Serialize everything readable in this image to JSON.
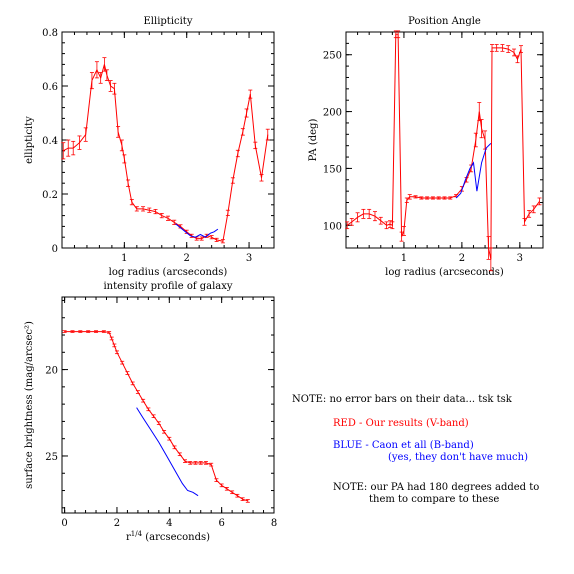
{
  "colors": {
    "red": "#ff0000",
    "blue": "#0000ff",
    "axis": "#000000"
  },
  "chart_data": [
    {
      "type": "line",
      "title": "Ellipticity",
      "xlabel": "log radius (arcseconds)",
      "ylabel": "ellipticity",
      "xlim": [
        0,
        3.4
      ],
      "ylim": [
        0,
        0.8
      ],
      "xticks": [
        1,
        2,
        3
      ],
      "yticks": [
        0,
        0.2,
        0.4,
        0.6,
        0.8
      ],
      "xtick_labels": [
        "1",
        "2",
        "3"
      ],
      "ytick_labels": [
        "0",
        "0.2",
        "0.4",
        "0.6",
        "0.8"
      ],
      "series": [
        {
          "color": "#ff0000",
          "errorbars": true,
          "x": [
            0.02,
            0.1,
            0.18,
            0.28,
            0.38,
            0.48,
            0.56,
            0.62,
            0.68,
            0.72,
            0.78,
            0.84,
            0.9,
            0.96,
            1.0,
            1.06,
            1.12,
            1.2,
            1.3,
            1.4,
            1.5,
            1.6,
            1.7,
            1.8,
            1.9,
            2.0,
            2.08,
            2.16,
            2.24,
            2.32,
            2.4,
            2.48,
            2.58,
            2.66,
            2.74,
            2.82,
            2.9,
            2.96,
            3.02,
            3.1,
            3.2,
            3.3
          ],
          "y": [
            0.36,
            0.37,
            0.37,
            0.39,
            0.42,
            0.62,
            0.66,
            0.63,
            0.68,
            0.64,
            0.6,
            0.59,
            0.43,
            0.38,
            0.33,
            0.24,
            0.17,
            0.145,
            0.145,
            0.14,
            0.135,
            0.12,
            0.11,
            0.095,
            0.08,
            0.06,
            0.045,
            0.035,
            0.035,
            0.045,
            0.04,
            0.03,
            0.025,
            0.13,
            0.25,
            0.35,
            0.43,
            0.5,
            0.57,
            0.38,
            0.26,
            0.42
          ],
          "err": [
            0.03,
            0.03,
            0.025,
            0.025,
            0.025,
            0.03,
            0.03,
            0.02,
            0.025,
            0.02,
            0.02,
            0.02,
            0.02,
            0.02,
            0.015,
            0.012,
            0.01,
            0.008,
            0.008,
            0.008,
            0.008,
            0.008,
            0.008,
            0.008,
            0.006,
            0.006,
            0.006,
            0.006,
            0.006,
            0.006,
            0.006,
            0.006,
            0.006,
            0.01,
            0.01,
            0.012,
            0.012,
            0.015,
            0.015,
            0.012,
            0.012,
            0.02
          ]
        },
        {
          "color": "#0000ff",
          "errorbars": false,
          "x": [
            1.82,
            1.9,
            1.98,
            2.06,
            2.14,
            2.22,
            2.3,
            2.38,
            2.44,
            2.5
          ],
          "y": [
            0.09,
            0.075,
            0.06,
            0.045,
            0.04,
            0.05,
            0.04,
            0.055,
            0.06,
            0.07
          ]
        }
      ]
    },
    {
      "type": "line",
      "title": "Position Angle",
      "xlabel": "log radius (arcseconds)",
      "ylabel": "PA (deg)",
      "xlim": [
        0,
        3.4
      ],
      "ylim": [
        80,
        270
      ],
      "xticks": [
        1,
        2,
        3
      ],
      "yticks": [
        100,
        150,
        200,
        250
      ],
      "xtick_labels": [
        "1",
        "2",
        "3"
      ],
      "ytick_labels": [
        "100",
        "150",
        "200",
        "250"
      ],
      "series": [
        {
          "color": "#ff0000",
          "errorbars": true,
          "x": [
            0.02,
            0.1,
            0.2,
            0.3,
            0.4,
            0.5,
            0.6,
            0.7,
            0.76,
            0.8,
            0.86,
            0.9,
            0.96,
            1.0,
            1.05,
            1.1,
            1.2,
            1.3,
            1.4,
            1.5,
            1.6,
            1.7,
            1.8,
            1.9,
            2.0,
            2.08,
            2.16,
            2.24,
            2.3,
            2.34,
            2.4,
            2.46,
            2.5,
            2.52,
            2.6,
            2.7,
            2.8,
            2.9,
            2.96,
            3.02,
            3.08,
            3.16,
            3.24,
            3.34
          ],
          "y": [
            100,
            103,
            107,
            110,
            110,
            108,
            104,
            100,
            101,
            100,
            268,
            268,
            90,
            95,
            122,
            125,
            125,
            124,
            124,
            124,
            124,
            124,
            124,
            126,
            132,
            140,
            150,
            175,
            200,
            185,
            175,
            80,
            70,
            256,
            256,
            256,
            255,
            252,
            246,
            255,
            103,
            110,
            114,
            121
          ],
          "err": [
            3,
            3,
            4,
            4,
            4,
            4,
            3,
            3,
            3,
            3,
            3,
            3,
            4,
            4,
            2,
            2,
            1,
            1,
            1,
            1,
            1,
            1,
            1,
            1,
            2,
            2,
            3,
            6,
            8,
            8,
            8,
            10,
            10,
            3,
            3,
            3,
            3,
            3,
            3,
            3,
            3,
            3,
            3,
            3
          ]
        },
        {
          "color": "#0000ff",
          "errorbars": false,
          "x": [
            1.9,
            1.98,
            2.06,
            2.14,
            2.2,
            2.26,
            2.34,
            2.42,
            2.5
          ],
          "y": [
            124,
            128,
            140,
            150,
            155,
            130,
            155,
            168,
            172
          ]
        }
      ]
    },
    {
      "type": "line",
      "title": "intensity profile of galaxy",
      "xlabel": "r^1/4 (arcseconds)",
      "ylabel": "surface brightness (mag/arcsec²)",
      "xlim": [
        -0.1,
        8
      ],
      "ylim": [
        28.3,
        15.8
      ],
      "xticks": [
        0,
        2,
        4,
        6,
        8
      ],
      "yticks": [
        20,
        25
      ],
      "xtick_labels": [
        "0",
        "2",
        "4",
        "6",
        "8"
      ],
      "ytick_labels": [
        "20",
        "25"
      ],
      "series": [
        {
          "color": "#ff0000",
          "errorbars": true,
          "x": [
            0.0,
            0.3,
            0.6,
            0.9,
            1.2,
            1.5,
            1.7,
            1.8,
            1.9,
            2.0,
            2.2,
            2.4,
            2.6,
            2.8,
            3.0,
            3.2,
            3.4,
            3.6,
            3.8,
            4.0,
            4.2,
            4.4,
            4.6,
            4.8,
            5.0,
            5.2,
            5.4,
            5.6,
            5.8,
            6.0,
            6.2,
            6.4,
            6.6,
            6.8,
            7.0
          ],
          "y": [
            17.8,
            17.8,
            17.8,
            17.8,
            17.8,
            17.8,
            17.85,
            18.2,
            18.6,
            19.0,
            19.6,
            20.2,
            20.8,
            21.3,
            21.8,
            22.3,
            22.7,
            23.1,
            23.6,
            24.0,
            24.5,
            24.9,
            25.3,
            25.4,
            25.4,
            25.4,
            25.4,
            25.5,
            26.4,
            26.7,
            26.9,
            27.1,
            27.3,
            27.5,
            27.6
          ],
          "err": [
            0.05,
            0.05,
            0.05,
            0.05,
            0.05,
            0.05,
            0.05,
            0.08,
            0.08,
            0.08,
            0.08,
            0.08,
            0.08,
            0.08,
            0.08,
            0.08,
            0.08,
            0.08,
            0.08,
            0.08,
            0.08,
            0.08,
            0.08,
            0.08,
            0.08,
            0.08,
            0.08,
            0.08,
            0.08,
            0.08,
            0.08,
            0.08,
            0.08,
            0.08,
            0.08
          ]
        },
        {
          "color": "#0000ff",
          "errorbars": false,
          "x": [
            2.75,
            3.0,
            3.3,
            3.6,
            3.9,
            4.2,
            4.5,
            4.7,
            4.9,
            5.1
          ],
          "y": [
            22.2,
            22.8,
            23.5,
            24.2,
            25.0,
            25.8,
            26.6,
            27.0,
            27.1,
            27.3
          ]
        }
      ]
    }
  ],
  "notes": {
    "note1": "NOTE: no error bars on their data... tsk tsk",
    "red_line": "RED - Our results (V-band)",
    "blue_line1": "BLUE - Caon et all (B-band)",
    "blue_line2": "(yes, they don't have much)",
    "note2_line1": "NOTE: our PA had 180 degrees added to",
    "note2_line2": "them to compare to these"
  }
}
